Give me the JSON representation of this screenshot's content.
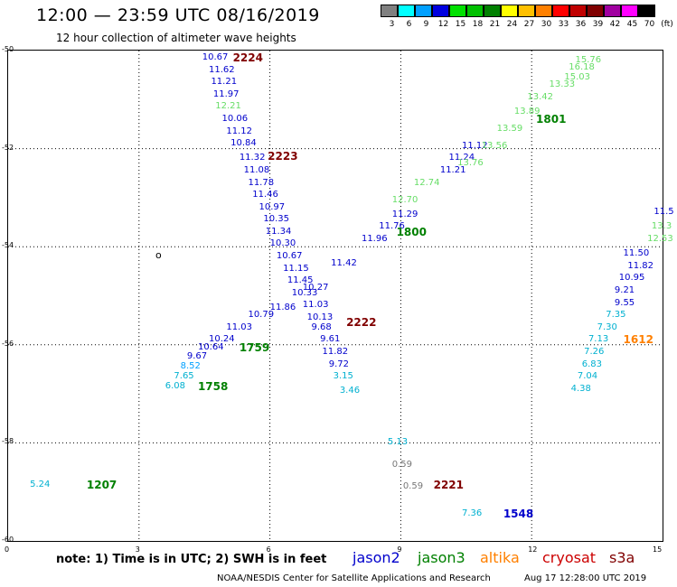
{
  "header": {
    "title": "12:00 — 23:59 UTC 08/16/2019",
    "subtitle": "12 hour collection of altimeter wave heights"
  },
  "legend": {
    "unit": "(ft)",
    "swatches": [
      {
        "label": "3",
        "color": "#808080"
      },
      {
        "label": "6",
        "color": "#00ffff"
      },
      {
        "label": "9",
        "color": "#00a0ff"
      },
      {
        "label": "12",
        "color": "#0000e0"
      },
      {
        "label": "15",
        "color": "#00e000"
      },
      {
        "label": "18",
        "color": "#00c000"
      },
      {
        "label": "21",
        "color": "#008000"
      },
      {
        "label": "24",
        "color": "#ffff00"
      },
      {
        "label": "27",
        "color": "#ffc000"
      },
      {
        "label": "30",
        "color": "#ff8000"
      },
      {
        "label": "33",
        "color": "#ff0000"
      },
      {
        "label": "36",
        "color": "#c00000"
      },
      {
        "label": "39",
        "color": "#800000"
      },
      {
        "label": "42",
        "color": "#a000a0"
      },
      {
        "label": "45",
        "color": "#ff00ff"
      },
      {
        "label": "70",
        "color": "#000000"
      }
    ]
  },
  "axes": {
    "x_ticks": [
      "0",
      "3",
      "6",
      "9",
      "12",
      "15"
    ],
    "y_ticks": [
      "-50",
      "-52",
      "-54",
      "-56",
      "-58",
      "-60"
    ],
    "x_range": [
      0,
      15
    ],
    "y_range": [
      -50,
      -60
    ]
  },
  "island_marker": "o",
  "colors": {
    "jason2": "#0000cc",
    "jason3": "#008000",
    "altika": "#ff8000",
    "cryosat": "#cc0000",
    "s3a": "#800000",
    "light_green": "#66dd66",
    "cyan": "#00b0d0",
    "gray": "#777777",
    "timeblue": "#0000cc",
    "timegreen": "#008000",
    "timered": "#800000",
    "timeorange": "#ff8000"
  },
  "observations": [
    {
      "t": "10.67",
      "lon": 4.45,
      "lat": -50.15,
      "c": "#0000cc"
    },
    {
      "t": "11.62",
      "lon": 4.6,
      "lat": -50.4,
      "c": "#0000cc"
    },
    {
      "t": "11.21",
      "lon": 4.65,
      "lat": -50.65,
      "c": "#0000cc"
    },
    {
      "t": "11.97",
      "lon": 4.7,
      "lat": -50.9,
      "c": "#0000cc"
    },
    {
      "t": "12.21",
      "lon": 4.75,
      "lat": -51.15,
      "c": "#66dd66"
    },
    {
      "t": "10.06",
      "lon": 4.9,
      "lat": -51.4,
      "c": "#0000cc"
    },
    {
      "t": "11.12",
      "lon": 5.0,
      "lat": -51.65,
      "c": "#0000cc"
    },
    {
      "t": "10.84",
      "lon": 5.1,
      "lat": -51.9,
      "c": "#0000cc"
    },
    {
      "t": "11.32",
      "lon": 5.3,
      "lat": -52.2,
      "c": "#0000cc"
    },
    {
      "t": "11.08",
      "lon": 5.4,
      "lat": -52.45,
      "c": "#0000cc"
    },
    {
      "t": "11.78",
      "lon": 5.5,
      "lat": -52.7,
      "c": "#0000cc"
    },
    {
      "t": "11.46",
      "lon": 5.6,
      "lat": -52.95,
      "c": "#0000cc"
    },
    {
      "t": "10.97",
      "lon": 5.75,
      "lat": -53.2,
      "c": "#0000cc"
    },
    {
      "t": "10.35",
      "lon": 5.85,
      "lat": -53.45,
      "c": "#0000cc"
    },
    {
      "t": "11.34",
      "lon": 5.9,
      "lat": -53.7,
      "c": "#0000cc"
    },
    {
      "t": "10.30",
      "lon": 6.0,
      "lat": -53.95,
      "c": "#0000cc"
    },
    {
      "t": "10.67",
      "lon": 6.15,
      "lat": -54.2,
      "c": "#0000cc"
    },
    {
      "t": "11.15",
      "lon": 6.3,
      "lat": -54.45,
      "c": "#0000cc"
    },
    {
      "t": "11.45",
      "lon": 6.4,
      "lat": -54.7,
      "c": "#0000cc"
    },
    {
      "t": "10.13",
      "lon": 6.85,
      "lat": -55.45,
      "c": "#0000cc"
    },
    {
      "t": "11.03",
      "lon": 6.75,
      "lat": -55.2,
      "c": "#0000cc"
    },
    {
      "t": "9.68",
      "lon": 6.95,
      "lat": -55.65,
      "c": "#0000cc"
    },
    {
      "t": "9.61",
      "lon": 7.15,
      "lat": -55.9,
      "c": "#0000cc"
    },
    {
      "t": "11.82",
      "lon": 7.2,
      "lat": -56.15,
      "c": "#0000cc"
    },
    {
      "t": "9.72",
      "lon": 7.35,
      "lat": -56.4,
      "c": "#0000cc"
    },
    {
      "t": "3.15",
      "lon": 7.45,
      "lat": -56.65,
      "c": "#00b0d0"
    },
    {
      "t": "3.46",
      "lon": 7.6,
      "lat": -56.95,
      "c": "#00b0d0"
    },
    {
      "t": "11.86",
      "lon": 6.0,
      "lat": -55.25,
      "c": "#0000cc"
    },
    {
      "t": "10.79",
      "lon": 5.5,
      "lat": -55.4,
      "c": "#0000cc"
    },
    {
      "t": "11.03",
      "lon": 5.0,
      "lat": -55.65,
      "c": "#0000cc"
    },
    {
      "t": "10.24",
      "lon": 4.6,
      "lat": -55.9,
      "c": "#0000cc"
    },
    {
      "t": "10.64",
      "lon": 4.35,
      "lat": -56.05,
      "c": "#0000cc"
    },
    {
      "t": "9.67",
      "lon": 4.1,
      "lat": -56.25,
      "c": "#0000cc"
    },
    {
      "t": "8.52",
      "lon": 3.95,
      "lat": -56.45,
      "c": "#00a0ff"
    },
    {
      "t": "7.65",
      "lon": 3.8,
      "lat": -56.65,
      "c": "#00b0d0"
    },
    {
      "t": "6.08",
      "lon": 3.6,
      "lat": -56.85,
      "c": "#00b0d0"
    },
    {
      "t": "10.33",
      "lon": 6.5,
      "lat": -54.95,
      "c": "#0000cc"
    },
    {
      "t": "10.27",
      "lon": 6.75,
      "lat": -54.85,
      "c": "#0000cc"
    },
    {
      "t": "11.42",
      "lon": 7.4,
      "lat": -54.35,
      "c": "#0000cc"
    },
    {
      "t": "11.96",
      "lon": 8.1,
      "lat": -53.85,
      "c": "#0000cc"
    },
    {
      "t": "11.76",
      "lon": 8.5,
      "lat": -53.6,
      "c": "#0000cc"
    },
    {
      "t": "11.29",
      "lon": 8.8,
      "lat": -53.35,
      "c": "#0000cc"
    },
    {
      "t": "12.70",
      "lon": 8.8,
      "lat": -53.05,
      "c": "#66dd66"
    },
    {
      "t": "12.74",
      "lon": 9.3,
      "lat": -52.7,
      "c": "#66dd66"
    },
    {
      "t": "11.21",
      "lon": 9.9,
      "lat": -52.45,
      "c": "#0000cc"
    },
    {
      "t": "11.24",
      "lon": 10.1,
      "lat": -52.2,
      "c": "#0000cc"
    },
    {
      "t": "11.12",
      "lon": 10.4,
      "lat": -51.95,
      "c": "#0000cc"
    },
    {
      "t": "13.76",
      "lon": 10.3,
      "lat": -52.3,
      "c": "#66dd66"
    },
    {
      "t": "13.56",
      "lon": 10.85,
      "lat": -51.95,
      "c": "#66dd66"
    },
    {
      "t": "13.59",
      "lon": 11.2,
      "lat": -51.6,
      "c": "#66dd66"
    },
    {
      "t": "13.89",
      "lon": 11.6,
      "lat": -51.25,
      "c": "#66dd66"
    },
    {
      "t": "13.42",
      "lon": 11.9,
      "lat": -50.95,
      "c": "#66dd66"
    },
    {
      "t": "13.33",
      "lon": 12.4,
      "lat": -50.7,
      "c": "#66dd66"
    },
    {
      "t": "15.03",
      "lon": 12.75,
      "lat": -50.55,
      "c": "#66dd66"
    },
    {
      "t": "16.18",
      "lon": 12.85,
      "lat": -50.35,
      "c": "#66dd66"
    },
    {
      "t": "15.76",
      "lon": 13.0,
      "lat": -50.2,
      "c": "#66dd66"
    },
    {
      "t": "11.5",
      "lon": 14.8,
      "lat": -53.3,
      "c": "#0000cc"
    },
    {
      "t": "13.3",
      "lon": 14.75,
      "lat": -53.6,
      "c": "#66dd66"
    },
    {
      "t": "12.53",
      "lon": 14.65,
      "lat": -53.85,
      "c": "#66dd66"
    },
    {
      "t": "11.50",
      "lon": 14.1,
      "lat": -54.15,
      "c": "#0000cc"
    },
    {
      "t": "11.82",
      "lon": 14.2,
      "lat": -54.4,
      "c": "#0000cc"
    },
    {
      "t": "10.95",
      "lon": 14.0,
      "lat": -54.65,
      "c": "#0000cc"
    },
    {
      "t": "9.21",
      "lon": 13.9,
      "lat": -54.9,
      "c": "#0000cc"
    },
    {
      "t": "9.55",
      "lon": 13.9,
      "lat": -55.15,
      "c": "#0000cc"
    },
    {
      "t": "7.35",
      "lon": 13.7,
      "lat": -55.4,
      "c": "#00b0d0"
    },
    {
      "t": "7.30",
      "lon": 13.5,
      "lat": -55.65,
      "c": "#00b0d0"
    },
    {
      "t": "7.13",
      "lon": 13.3,
      "lat": -55.9,
      "c": "#00b0d0"
    },
    {
      "t": "7.26",
      "lon": 13.2,
      "lat": -56.15,
      "c": "#00b0d0"
    },
    {
      "t": "6.83",
      "lon": 13.15,
      "lat": -56.4,
      "c": "#00b0d0"
    },
    {
      "t": "7.04",
      "lon": 13.05,
      "lat": -56.65,
      "c": "#00b0d0"
    },
    {
      "t": "4.38",
      "lon": 12.9,
      "lat": -56.9,
      "c": "#00b0d0"
    },
    {
      "t": "5.13",
      "lon": 8.7,
      "lat": -58.0,
      "c": "#00b0d0"
    },
    {
      "t": "0.59",
      "lon": 8.8,
      "lat": -58.45,
      "c": "#777777"
    },
    {
      "t": "0.59",
      "lon": 9.05,
      "lat": -58.9,
      "c": "#777777"
    },
    {
      "t": "7.36",
      "lon": 10.4,
      "lat": -59.45,
      "c": "#00b0d0"
    },
    {
      "t": "5.24",
      "lon": 0.5,
      "lat": -58.85,
      "c": "#00b0d0"
    }
  ],
  "time_labels": [
    {
      "t": "2224",
      "lon": 5.15,
      "lat": -50.15,
      "c": "#800000"
    },
    {
      "t": "2223",
      "lon": 5.95,
      "lat": -52.15,
      "c": "#800000"
    },
    {
      "t": "2222",
      "lon": 7.75,
      "lat": -55.55,
      "c": "#800000"
    },
    {
      "t": "2221",
      "lon": 9.75,
      "lat": -58.85,
      "c": "#800000"
    },
    {
      "t": "1801",
      "lon": 12.1,
      "lat": -51.4,
      "c": "#008000"
    },
    {
      "t": "1800",
      "lon": 8.9,
      "lat": -53.7,
      "c": "#008000"
    },
    {
      "t": "1759",
      "lon": 5.3,
      "lat": -56.05,
      "c": "#008000"
    },
    {
      "t": "1758",
      "lon": 4.35,
      "lat": -56.85,
      "c": "#008000"
    },
    {
      "t": "1612",
      "lon": 14.1,
      "lat": -55.9,
      "c": "#ff8000"
    },
    {
      "t": "1548",
      "lon": 11.35,
      "lat": -59.45,
      "c": "#0000cc"
    },
    {
      "t": "1207",
      "lon": 1.8,
      "lat": -58.85,
      "c": "#008000"
    }
  ],
  "note": "note: 1) Time is in UTC; 2) SWH is in feet",
  "satellites": [
    {
      "name": "jason2",
      "color": "#0000cc"
    },
    {
      "name": "jason3",
      "color": "#008000"
    },
    {
      "name": "altika",
      "color": "#ff8000"
    },
    {
      "name": "cryosat",
      "color": "#cc0000"
    },
    {
      "name": "s3a",
      "color": "#800000"
    }
  ],
  "footer": {
    "left": "NOAA/NESDIS Center for Satellite Applications and Research",
    "right": "Aug 17 12:28:00 UTC 2019"
  }
}
